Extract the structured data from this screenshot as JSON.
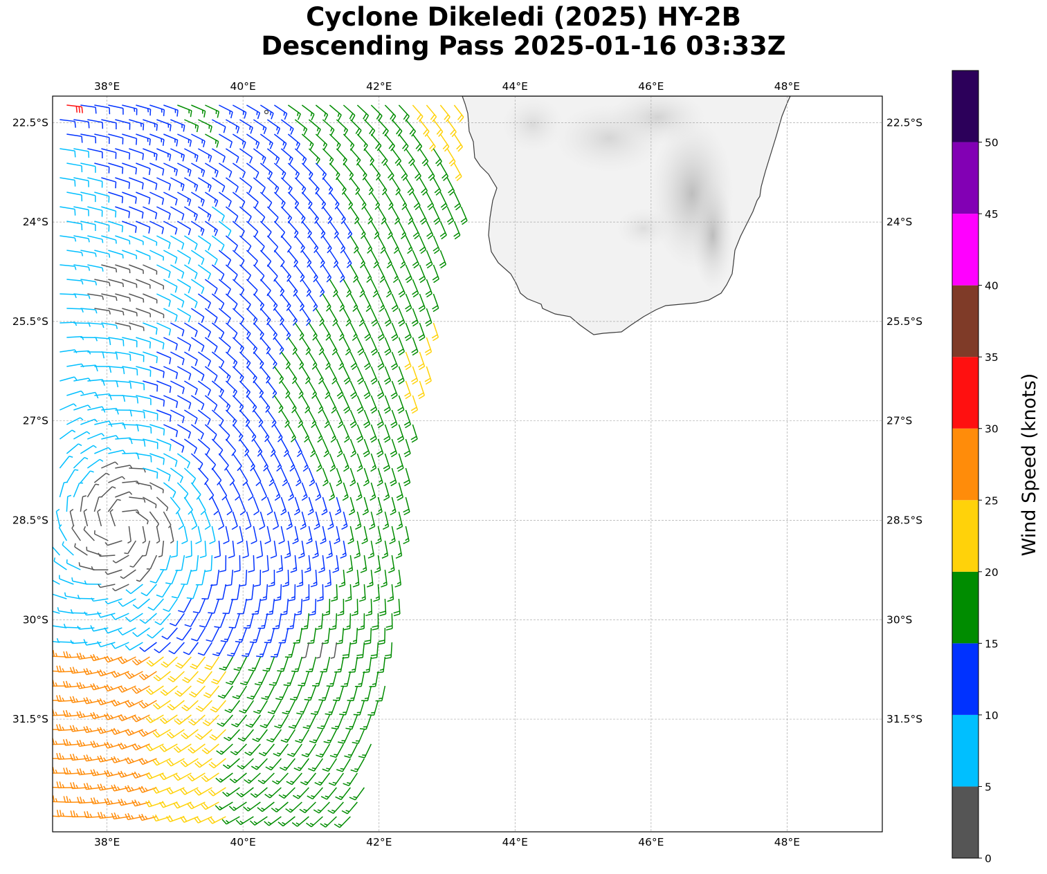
{
  "title": {
    "line1": "Cyclone Dikeledi (2025) HY-2B",
    "line2": "Descending Pass 2025-01-16 03:33Z"
  },
  "map": {
    "lon_range": [
      37.2,
      49.4
    ],
    "lat_range": [
      -33.2,
      -22.1
    ],
    "lon_ticks": [
      38,
      40,
      42,
      44,
      46,
      48
    ],
    "lon_tick_labels": [
      "38°E",
      "40°E",
      "42°E",
      "44°E",
      "46°E",
      "48°E"
    ],
    "lat_ticks": [
      -22.5,
      -24,
      -25.5,
      -27,
      -28.5,
      -30,
      -31.5
    ],
    "lat_tick_labels": [
      "22.5°S",
      "24°S",
      "25.5°S",
      "27°S",
      "28.5°S",
      "30°S",
      "31.5°S"
    ],
    "gridlines": true,
    "land_feature": "Madagascar (southern tip), grey terrain shading",
    "wind_field": "scatterometer wind barbs, colored by speed"
  },
  "colorbar": {
    "label": "Wind Speed (knots)",
    "ticks": [
      0,
      5,
      10,
      15,
      20,
      25,
      30,
      35,
      40,
      45,
      50
    ],
    "max": 55,
    "bins": [
      {
        "from": 0,
        "to": 5,
        "color": "#555555"
      },
      {
        "from": 5,
        "to": 10,
        "color": "#00bfff"
      },
      {
        "from": 10,
        "to": 15,
        "color": "#0032ff"
      },
      {
        "from": 15,
        "to": 20,
        "color": "#008c00"
      },
      {
        "from": 20,
        "to": 25,
        "color": "#ffd20a"
      },
      {
        "from": 25,
        "to": 30,
        "color": "#ff8c0a"
      },
      {
        "from": 30,
        "to": 35,
        "color": "#ff1010"
      },
      {
        "from": 35,
        "to": 40,
        "color": "#7f3b28"
      },
      {
        "from": 40,
        "to": 45,
        "color": "#ff00ff"
      },
      {
        "from": 45,
        "to": 50,
        "color": "#8200b4"
      },
      {
        "from": 50,
        "to": 55,
        "color": "#2c005a"
      }
    ]
  }
}
